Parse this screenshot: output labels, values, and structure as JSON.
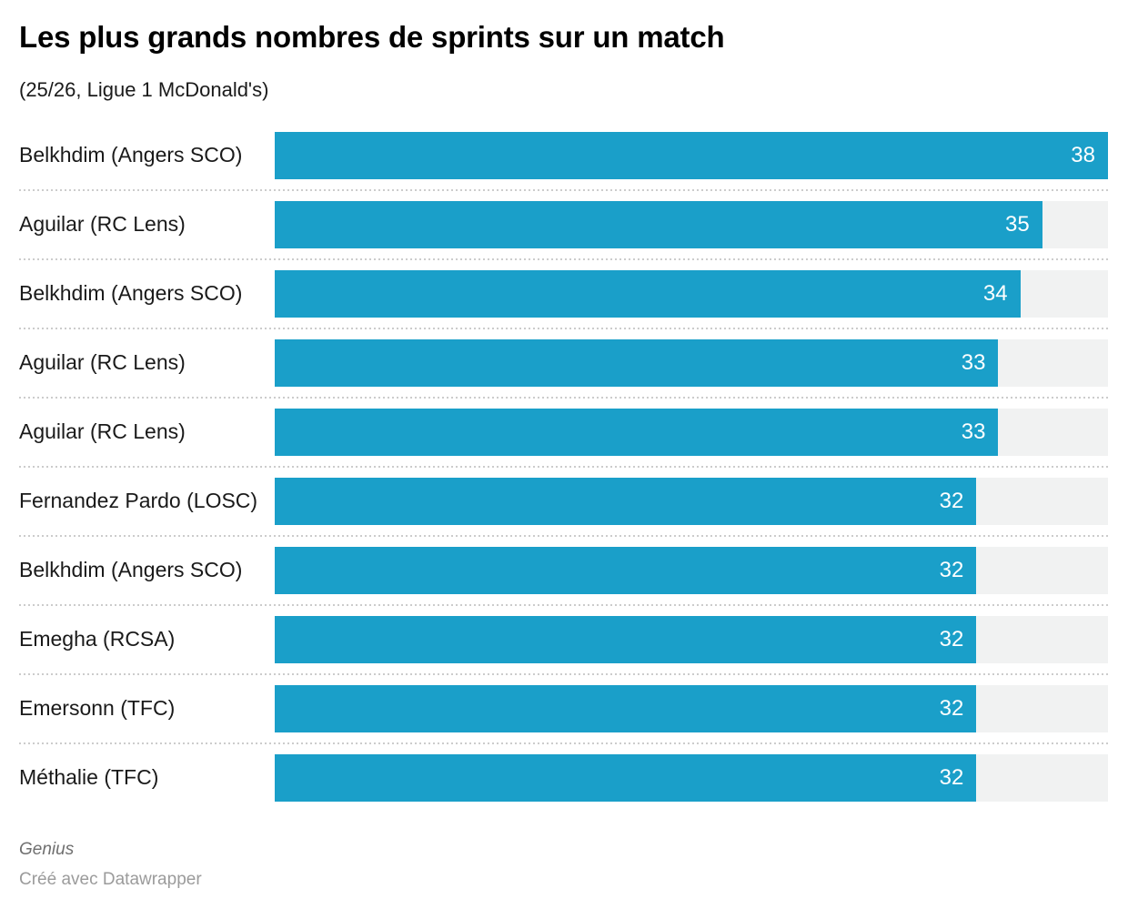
{
  "header": {
    "title": "Les plus grands nombres de sprints sur un match",
    "subtitle": "(25/26, Ligue 1 McDonald's)"
  },
  "footer": {
    "byline": "Genius",
    "credit": "Créé avec Datawrapper"
  },
  "chart_data": {
    "type": "bar",
    "orientation": "horizontal",
    "title": "Les plus grands nombres de sprints sur un match",
    "subtitle": "(25/26, Ligue 1 McDonald's)",
    "categories": [
      "Belkhdim (Angers SCO)",
      "Aguilar (RC Lens)",
      "Belkhdim (Angers SCO)",
      "Aguilar (RC Lens)",
      "Aguilar (RC Lens)",
      "Fernandez Pardo (LOSC)",
      "Belkhdim (Angers SCO)",
      "Emegha (RCSA)",
      "Emersonn (TFC)",
      "Méthalie (TFC)"
    ],
    "values": [
      38,
      35,
      34,
      33,
      33,
      32,
      32,
      32,
      32,
      32
    ],
    "xlim": [
      0,
      38
    ],
    "value_labels": "inside bar end, white",
    "grid": "dotted horizontal row separators",
    "legend": "none",
    "colors": {
      "bar": "#1a9fc9",
      "track": "#f1f2f2",
      "separator": "#cccccc",
      "value_label": "#ffffff",
      "category_label": "#1a1a1a",
      "title": "#000000"
    }
  }
}
